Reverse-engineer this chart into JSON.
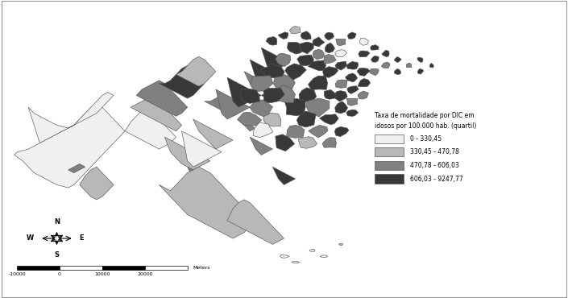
{
  "legend_title_line1": "Taxa de mortalidade por DIC em",
  "legend_title_line2": "idosos por 100.000 hab. (quartil)",
  "legend_labels": [
    "0 - 330,45",
    "330,45 - 470,78",
    "470,78 - 606,03",
    "606,03 - 9247,77"
  ],
  "legend_colors": [
    "#f0f0f0",
    "#b8b8b8",
    "#808080",
    "#383838"
  ],
  "background_color": "#ffffff",
  "fig_width": 7.05,
  "fig_height": 3.7,
  "dpi": 100,
  "map_xlim": [
    0,
    100
  ],
  "map_ylim": [
    0,
    100
  ]
}
